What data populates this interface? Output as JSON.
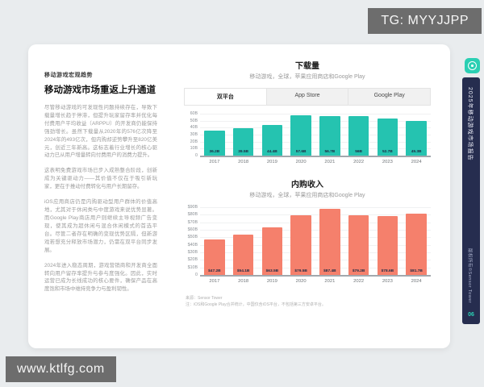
{
  "watermarks": {
    "top_right": "TG: MYYJJPP",
    "bottom_left": "www.ktlfg.com"
  },
  "article": {
    "eyebrow": "移动游戏宏观趋势",
    "title": "移动游戏市场重返上升通道",
    "paragraphs": [
      "尽管移动游戏的可发现性问题持续存在，导致下载量增长趋于停滞，但提升玩家留存率并优化每付费用户平均收益（ARPPU）的开发商仍能保持强劲增长。虽然下载量从2020年的576亿次降至2024年的493亿次，但内购却逆势攀升至820亿美元，创近三年新高。这标志着行业增长的核心驱动力已从用户增量转向付费用户的消费力提升。",
      "这表明免费游戏市场已步入成熟整合阶段，创新成为关键驱动力——其价值不仅在于吸引新玩家，更在于推动付费转化与用户长期留存。",
      "iOS应用商店仍是内购驱动型用户群体的价值高地，尤其对于休闲类与中度游戏来说优势显著。而Google Play商店用户则继续主导视频广告变现，使其成为超休闲与混合休闲模式的首选平台。尽管二者存在明确的变现优势区隔，但新游戏若想充分释放市场潜力，仍需在双平台同步发展。",
      "2024年进入稳态周期，游戏营销商和开发商全面转向用户留存率提升与参与度强化。因此，实时运营已成为长线成功的核心要件，确保产品在高度饱和市场中维持竞争力与盈利韧性。"
    ]
  },
  "tabs": [
    {
      "label": "双平台",
      "active": true
    },
    {
      "label": "App Store",
      "active": false
    },
    {
      "label": "Google Play",
      "active": false
    }
  ],
  "chart_data": [
    {
      "type": "bar",
      "title": "下载量",
      "subtitle": "移动游戏，全球，苹果应用商店和Google Play",
      "categories": [
        "2017",
        "2018",
        "2019",
        "2020",
        "2021",
        "2022",
        "2023",
        "2024"
      ],
      "values": [
        36.2,
        39.5,
        44.4,
        57.6,
        56.7,
        56,
        52.7,
        49.3
      ],
      "labels": [
        "36.2B",
        "39.5B",
        "44.4B",
        "57.6B",
        "56.7B",
        "56B",
        "52.7B",
        "49.3B"
      ],
      "xlabel": "",
      "ylabel": "",
      "ylim": [
        0,
        60
      ],
      "yticks": [
        {
          "v": 60,
          "label": "60B"
        },
        {
          "v": 50,
          "label": "50B"
        },
        {
          "v": 40,
          "label": "40B"
        },
        {
          "v": 30,
          "label": "30B"
        },
        {
          "v": 20,
          "label": "20B"
        },
        {
          "v": 10,
          "label": "10B"
        },
        {
          "v": 0,
          "label": "0"
        }
      ],
      "grid": true,
      "legend": "none",
      "bar_color": "#25c3b0"
    },
    {
      "type": "bar",
      "title": "内购收入",
      "subtitle": "移动游戏，全球，苹果应用商店和Google Play",
      "categories": [
        "2017",
        "2018",
        "2019",
        "2020",
        "2021",
        "2022",
        "2023",
        "2024"
      ],
      "values": [
        47.2,
        54.1,
        63.5,
        79.5,
        87.4,
        79.2,
        78.6,
        81.7
      ],
      "labels": [
        "$47.2B",
        "$54.1B",
        "$63.5B",
        "$79.5B",
        "$87.4B",
        "$79.2B",
        "$78.6B",
        "$81.7B"
      ],
      "xlabel": "",
      "ylabel": "",
      "ylim": [
        0,
        90
      ],
      "yticks": [
        {
          "v": 90,
          "label": "$90B"
        },
        {
          "v": 80,
          "label": "$80B"
        },
        {
          "v": 70,
          "label": "$70B"
        },
        {
          "v": 60,
          "label": "$60B"
        },
        {
          "v": 50,
          "label": "$50B"
        },
        {
          "v": 40,
          "label": "$40B"
        },
        {
          "v": 30,
          "label": "$30B"
        },
        {
          "v": 20,
          "label": "$20B"
        },
        {
          "v": 10,
          "label": "$10B"
        },
        {
          "v": 0,
          "label": "0"
        }
      ],
      "grid": true,
      "legend": "none",
      "bar_color": "#f5806c"
    }
  ],
  "footnote": {
    "source": "来源：Sensor Tower",
    "note": "注：iOS和Google Play合并统计，中国仅含iOS平台，不包括第三方安卓平台。"
  },
  "spine": {
    "report_title": "2025年移动游戏市场报告",
    "copyright": "版权所有©Sensor Tower",
    "page_number": "06",
    "accent_color": "#2bd0b4",
    "bg_color": "#262d4f"
  }
}
